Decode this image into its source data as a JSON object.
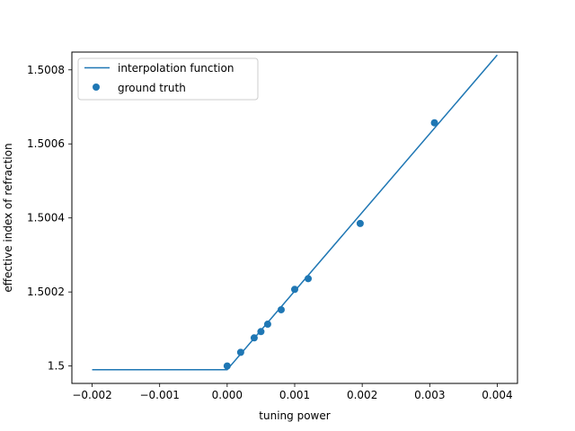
{
  "chart_data": {
    "type": "line",
    "title": "",
    "xlabel": "tuning power",
    "ylabel": "effective index of refraction",
    "xlim": [
      -0.0023,
      0.0043
    ],
    "ylim": [
      1.499953,
      1.500848
    ],
    "xticks": [
      -0.002,
      -0.001,
      0.0,
      0.001,
      0.002,
      0.003,
      0.004
    ],
    "xtick_labels": [
      "−0.002",
      "−0.001",
      "0.000",
      "0.001",
      "0.002",
      "0.003",
      "0.004"
    ],
    "yticks": [
      1.5,
      1.5002,
      1.5004,
      1.5006,
      1.5008
    ],
    "ytick_labels": [
      "1.5",
      "1.5002",
      "1.5004",
      "1.5006",
      "1.5008"
    ],
    "grid": false,
    "legend_position": "top-left",
    "color": "#1f77b4",
    "series": [
      {
        "name": "interpolation function",
        "kind": "line",
        "x": [
          -0.002,
          0.0,
          0.004
        ],
        "y": [
          1.49999,
          1.49999,
          1.50084
        ]
      },
      {
        "name": "ground truth",
        "kind": "scatter",
        "x": [
          0.0,
          0.0002,
          0.0004,
          0.0005,
          0.0006,
          0.0008,
          0.001,
          0.0012,
          0.00197,
          0.00307
        ],
        "y": [
          1.5,
          1.500037,
          1.500076,
          1.500093,
          1.500113,
          1.500152,
          1.500207,
          1.500236,
          1.500385,
          1.500657
        ]
      }
    ]
  }
}
